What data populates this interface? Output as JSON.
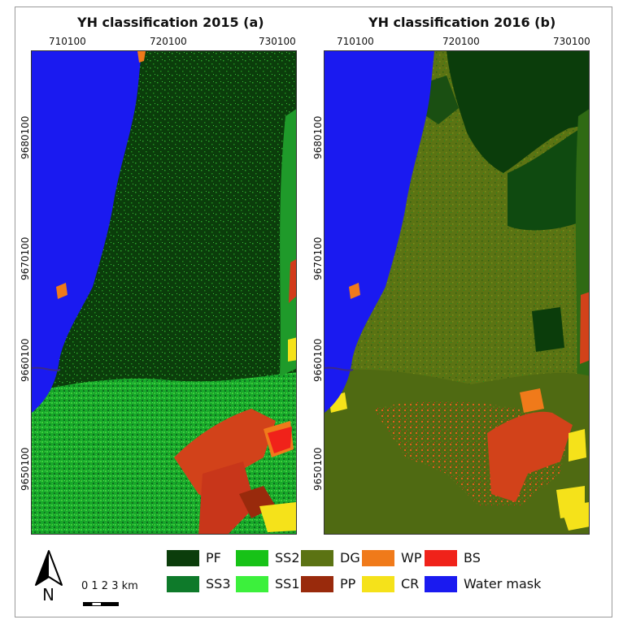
{
  "panels": [
    {
      "title": "YH classification 2015 (a)",
      "x_ticks": [
        "710100",
        "720100",
        "730100"
      ],
      "y_ticks": [
        "9680100",
        "9670100",
        "9660100",
        "9650100"
      ]
    },
    {
      "title": "YH classification 2016 (b)",
      "x_ticks": [
        "710100",
        "720100",
        "730100"
      ],
      "y_ticks": [
        "9680100",
        "9670100",
        "9660100",
        "9650100"
      ]
    }
  ],
  "legend": [
    {
      "code": "PF",
      "color": "#0b3d0b"
    },
    {
      "code": "SS2",
      "color": "#17c217"
    },
    {
      "code": "DG",
      "color": "#5b7313"
    },
    {
      "code": "WP",
      "color": "#f07a1a"
    },
    {
      "code": "BS",
      "color": "#f0221a"
    },
    {
      "code": "SS3",
      "color": "#0e7a2a"
    },
    {
      "code": "SS1",
      "color": "#3cf03c"
    },
    {
      "code": "PP",
      "color": "#992a0c"
    },
    {
      "code": "CR",
      "color": "#f5e21a"
    },
    {
      "code": "Water mask",
      "color": "#1a1af0"
    }
  ],
  "north_arrow": {
    "label": "N"
  },
  "scale_bar": {
    "label": "0 1 2 3 km"
  }
}
